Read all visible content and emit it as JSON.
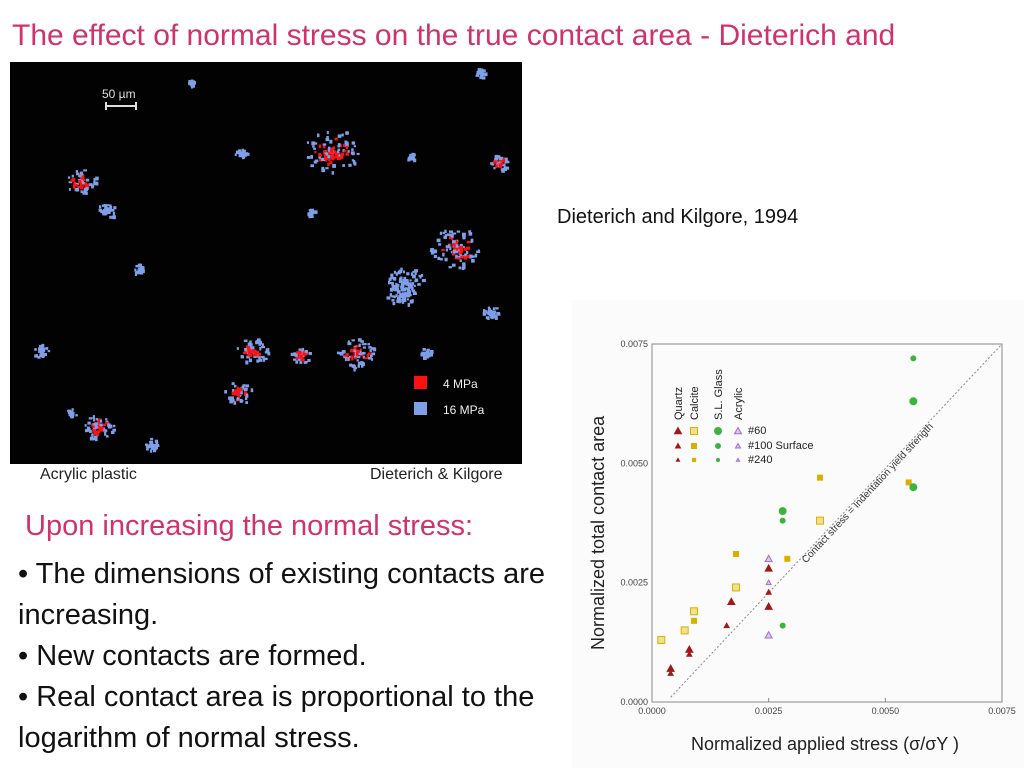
{
  "title": "The effect of normal stress on the true contact area - Dieterich and Kilgore",
  "micrograph": {
    "scale_bar": "50 µm",
    "legend": [
      {
        "label": "4 MPa",
        "color": "#ff1010"
      },
      {
        "label": "16 MPa",
        "color": "#7f9fe8"
      }
    ],
    "caption_left": "Acrylic plastic",
    "caption_right": "Dieterich & Kilgore"
  },
  "citation": "Dieterich and Kilgore, 1994",
  "bullets": {
    "heading": "Upon increasing the normal stress:",
    "items": [
      "• The dimensions of existing contacts are increasing.",
      "• New contacts are formed.",
      "• Real contact area is proportional to the logarithm of normal stress."
    ]
  },
  "chart_data": {
    "type": "scatter",
    "xlabel": "Normalized applied stress (σ/σY )",
    "ylabel": "Normalized  total contact area",
    "xlim": [
      0,
      0.0075
    ],
    "ylim": [
      0,
      0.0075
    ],
    "x_ticks": [
      "0.0000",
      "0.0025",
      "0.0050",
      "0.0075"
    ],
    "y_ticks": [
      "0.0000",
      "0.0025",
      "0.0050",
      "0.0075"
    ],
    "reference_line_label": "Contact stress = Indentation yield strength",
    "legend_columns": [
      "Quartz",
      "Calcite",
      "S.L. Glass",
      "Acrylic"
    ],
    "legend_rows": [
      "#60",
      "#100  Surface",
      "#240"
    ],
    "colors": {
      "Quartz": "#a01818",
      "Calcite": "#d8b000",
      "S.L. Glass": "#3cb43c",
      "Acrylic": "#a070c8"
    },
    "series": [
      {
        "name": "Quartz",
        "points": [
          [
            0.0004,
            0.0007
          ],
          [
            0.0004,
            0.0006
          ],
          [
            0.0008,
            0.0011
          ],
          [
            0.0008,
            0.001
          ],
          [
            0.0017,
            0.0021
          ],
          [
            0.0016,
            0.0016
          ],
          [
            0.0025,
            0.0028
          ],
          [
            0.0025,
            0.0023
          ],
          [
            0.0025,
            0.002
          ]
        ]
      },
      {
        "name": "Calcite",
        "points": [
          [
            0.0009,
            0.0019
          ],
          [
            0.0009,
            0.0017
          ],
          [
            0.0007,
            0.0015
          ],
          [
            0.0018,
            0.0031
          ],
          [
            0.0018,
            0.0024
          ],
          [
            0.0036,
            0.0047
          ],
          [
            0.0036,
            0.0038
          ],
          [
            0.0055,
            0.0046
          ],
          [
            0.0002,
            0.0013
          ],
          [
            0.0029,
            0.003
          ]
        ]
      },
      {
        "name": "S.L. Glass",
        "points": [
          [
            0.0028,
            0.004
          ],
          [
            0.0028,
            0.0038
          ],
          [
            0.0056,
            0.0063
          ],
          [
            0.0056,
            0.0072
          ],
          [
            0.0056,
            0.0045
          ],
          [
            0.0028,
            0.0016
          ]
        ]
      },
      {
        "name": "Acrylic",
        "points": [
          [
            0.0025,
            0.003
          ],
          [
            0.0025,
            0.0025
          ],
          [
            0.0025,
            0.0014
          ]
        ]
      }
    ]
  }
}
